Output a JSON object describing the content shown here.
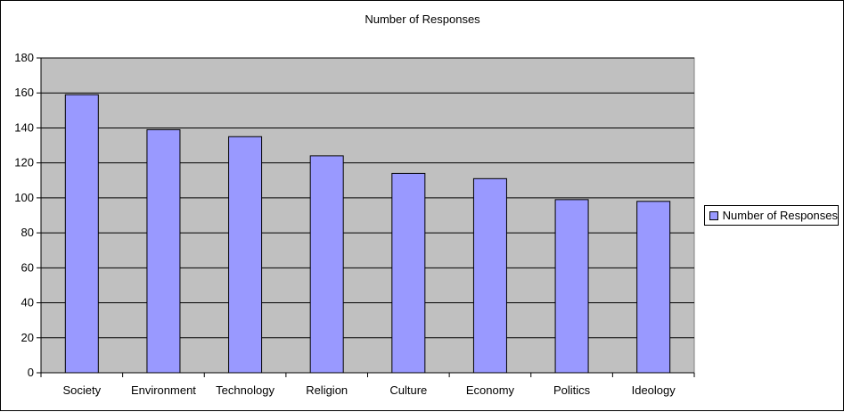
{
  "colors": {
    "bar_fill": "#9999ff",
    "plot_background": "#c0c0c0",
    "gridline": "#000000"
  },
  "chart_data": {
    "type": "bar",
    "title": "Number of Responses",
    "xlabel": "",
    "ylabel": "",
    "categories": [
      "Society",
      "Environment",
      "Technology",
      "Religion",
      "Culture",
      "Economy",
      "Politics",
      "Ideology"
    ],
    "series": [
      {
        "name": "Number of Responses",
        "values": [
          159,
          139,
          135,
          124,
          114,
          111,
          99,
          98
        ]
      }
    ],
    "ylim": [
      0,
      180
    ],
    "yticks": [
      0,
      20,
      40,
      60,
      80,
      100,
      120,
      140,
      160,
      180
    ],
    "grid": true,
    "legend_position": "right"
  }
}
